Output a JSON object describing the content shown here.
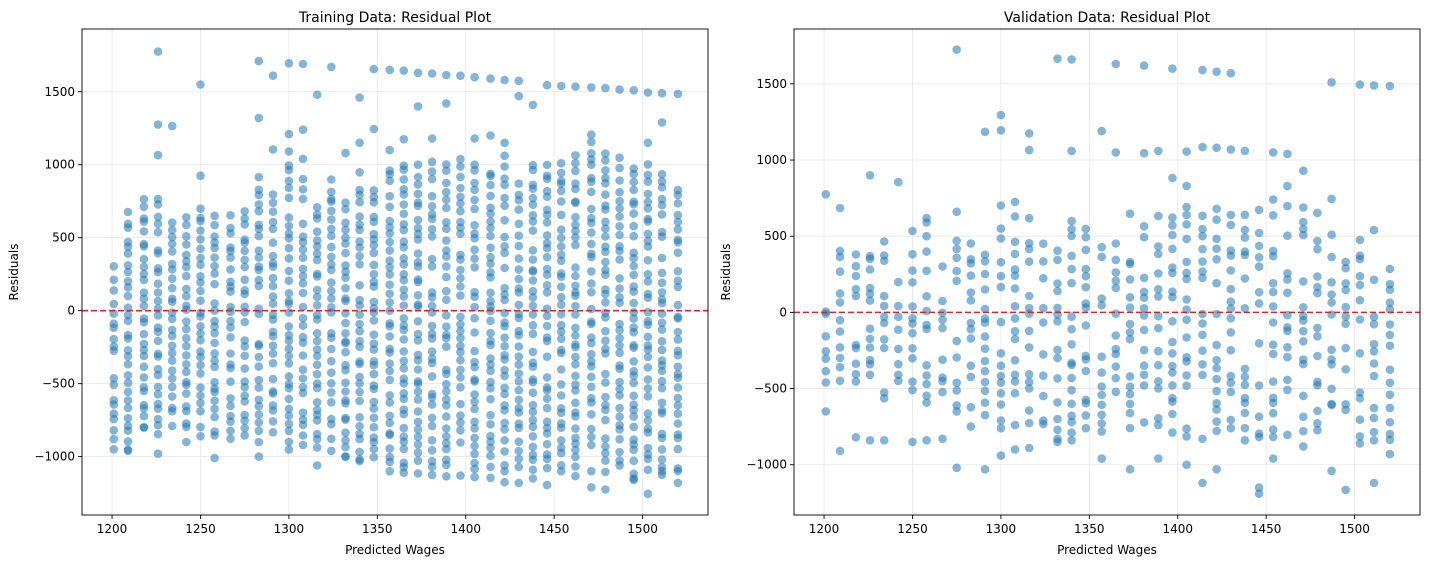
{
  "chart_data": [
    {
      "type": "scatter",
      "title": "Training Data: Residual Plot",
      "xlabel": "Predicted Wages",
      "ylabel": "Residuals",
      "xlim": [
        1183,
        1537
      ],
      "ylim": [
        -1400,
        1930
      ],
      "xticks": [
        1200,
        1250,
        1300,
        1350,
        1400,
        1450,
        1500
      ],
      "yticks": [
        -1000,
        -500,
        0,
        500,
        1000,
        1500
      ],
      "ytick_labels": [
        "−1000",
        "−500",
        "0",
        "500",
        "1000",
        "1500"
      ],
      "grid": true,
      "reference_line": {
        "y": 0,
        "color": "#d62728",
        "style": "dashed"
      },
      "point_color": "#1f77b4",
      "point_alpha": 0.55,
      "point_columns_x": [
        1201,
        1209,
        1218,
        1226,
        1234,
        1242,
        1250,
        1258,
        1267,
        1275,
        1283,
        1291,
        1300,
        1308,
        1316,
        1324,
        1332,
        1340,
        1348,
        1357,
        1365,
        1373,
        1381,
        1389,
        1397,
        1405,
        1414,
        1422,
        1430,
        1438,
        1446,
        1454,
        1462,
        1471,
        1479,
        1487,
        1495,
        1503,
        1511,
        1520
      ],
      "points": [
        [
          1226,
          1775
        ],
        [
          1226,
          1275
        ],
        [
          1226,
          1065
        ],
        [
          1234,
          1265
        ],
        [
          1250,
          1550
        ],
        [
          1250,
          925
        ],
        [
          1283,
          1710
        ],
        [
          1291,
          1610
        ],
        [
          1300,
          1695
        ],
        [
          1308,
          1690
        ],
        [
          1308,
          1240
        ],
        [
          1316,
          1480
        ],
        [
          1324,
          1670
        ],
        [
          1340,
          1460
        ],
        [
          1348,
          1655
        ],
        [
          1348,
          1245
        ],
        [
          1357,
          1650
        ],
        [
          1365,
          1645
        ],
        [
          1365,
          1175
        ],
        [
          1373,
          1630
        ],
        [
          1373,
          1400
        ],
        [
          1381,
          1625
        ],
        [
          1389,
          1615
        ],
        [
          1389,
          1420
        ],
        [
          1397,
          1610
        ],
        [
          1405,
          1600
        ],
        [
          1414,
          1590
        ],
        [
          1422,
          1580
        ],
        [
          1430,
          1575
        ],
        [
          1430,
          1470
        ],
        [
          1438,
          1410
        ],
        [
          1446,
          1545
        ],
        [
          1454,
          1540
        ],
        [
          1462,
          1535
        ],
        [
          1471,
          1530
        ],
        [
          1479,
          1525
        ],
        [
          1487,
          1515
        ],
        [
          1495,
          1510
        ],
        [
          1503,
          1495
        ],
        [
          1511,
          1490
        ],
        [
          1511,
          1290
        ],
        [
          1520,
          1485
        ],
        [
          1283,
          1320
        ],
        [
          1300,
          1210
        ],
        [
          1291,
          1105
        ],
        [
          1332,
          1080
        ],
        [
          1340,
          1150
        ],
        [
          1357,
          1100
        ],
        [
          1381,
          1180
        ],
        [
          1405,
          1180
        ],
        [
          1414,
          1200
        ],
        [
          1422,
          1150
        ],
        [
          1503,
          1150
        ],
        [
          1201,
          -950
        ],
        [
          1209,
          -960
        ],
        [
          1218,
          -800
        ],
        [
          1226,
          -980
        ],
        [
          1242,
          -900
        ],
        [
          1258,
          -1010
        ],
        [
          1283,
          -1000
        ],
        [
          1300,
          -900
        ],
        [
          1316,
          -1060
        ],
        [
          1332,
          -1000
        ],
        [
          1340,
          -1030
        ],
        [
          1357,
          -1100
        ],
        [
          1365,
          -1110
        ],
        [
          1373,
          -1115
        ],
        [
          1381,
          -1125
        ],
        [
          1389,
          -1135
        ],
        [
          1397,
          -1130
        ],
        [
          1405,
          -1140
        ],
        [
          1414,
          -1145
        ],
        [
          1422,
          -1175
        ],
        [
          1430,
          -1180
        ],
        [
          1438,
          -1150
        ],
        [
          1446,
          -1195
        ],
        [
          1454,
          -1100
        ],
        [
          1471,
          -1210
        ],
        [
          1479,
          -1225
        ],
        [
          1495,
          -1160
        ],
        [
          1503,
          -1255
        ],
        [
          1520,
          -1180
        ],
        [
          1511,
          -1100
        ]
      ],
      "band_top": [
        305,
        710,
        790,
        780,
        670,
        640,
        760,
        650,
        655,
        720,
        930,
        820,
        1100,
        1055,
        780,
        920,
        770,
        980,
        850,
        1015,
        1050,
        1000,
        1020,
        1055,
        1050,
        1000,
        1000,
        1080,
        900,
        1000,
        1055,
        1040,
        1080,
        1230,
        1130,
        1080,
        1000,
        1020,
        1000,
        880
      ],
      "band_bottom": [
        -880,
        -960,
        -800,
        -850,
        -830,
        -820,
        -860,
        -870,
        -880,
        -880,
        -900,
        -880,
        -960,
        -920,
        -950,
        -960,
        -1000,
        -1020,
        -1020,
        -1050,
        -1080,
        -1040,
        -1070,
        -1080,
        -1060,
        -1090,
        -1070,
        -1100,
        -1110,
        -1090,
        -1090,
        -1060,
        -1140,
        -1100,
        -1110,
        -1060,
        -1150,
        -1090,
        -1130,
        -1120
      ]
    },
    {
      "type": "scatter",
      "title": "Validation Data: Residual Plot",
      "xlabel": "Predicted Wages",
      "ylabel": "Residuals",
      "xlim": [
        1183,
        1537
      ],
      "ylim": [
        -1330,
        1860
      ],
      "xticks": [
        1200,
        1250,
        1300,
        1350,
        1400,
        1450,
        1500
      ],
      "yticks": [
        -1000,
        -500,
        0,
        500,
        1000,
        1500
      ],
      "ytick_labels": [
        "−1000",
        "−500",
        "0",
        "500",
        "1000",
        "1500"
      ],
      "grid": true,
      "reference_line": {
        "y": 0,
        "color": "#d62728",
        "style": "dashed"
      },
      "point_color": "#1f77b4",
      "point_alpha": 0.55,
      "point_columns_x": [
        1201,
        1209,
        1218,
        1226,
        1234,
        1242,
        1250,
        1258,
        1267,
        1275,
        1283,
        1291,
        1300,
        1308,
        1316,
        1324,
        1332,
        1340,
        1348,
        1357,
        1365,
        1373,
        1381,
        1389,
        1397,
        1405,
        1414,
        1422,
        1430,
        1438,
        1446,
        1454,
        1462,
        1471,
        1479,
        1487,
        1495,
        1503,
        1511,
        1520
      ],
      "points": [
        [
          1201,
          775
        ],
        [
          1209,
          685
        ],
        [
          1226,
          900
        ],
        [
          1242,
          855
        ],
        [
          1275,
          1725
        ],
        [
          1275,
          660
        ],
        [
          1300,
          1295
        ],
        [
          1300,
          1195
        ],
        [
          1291,
          1185
        ],
        [
          1316,
          1175
        ],
        [
          1316,
          1065
        ],
        [
          1332,
          1665
        ],
        [
          1340,
          1660
        ],
        [
          1340,
          1060
        ],
        [
          1357,
          1190
        ],
        [
          1365,
          1630
        ],
        [
          1365,
          1050
        ],
        [
          1381,
          1620
        ],
        [
          1381,
          1045
        ],
        [
          1389,
          1060
        ],
        [
          1397,
          1600
        ],
        [
          1405,
          1055
        ],
        [
          1414,
          1590
        ],
        [
          1414,
          1085
        ],
        [
          1422,
          1580
        ],
        [
          1422,
          1080
        ],
        [
          1430,
          1570
        ],
        [
          1430,
          1070
        ],
        [
          1438,
          1060
        ],
        [
          1454,
          1050
        ],
        [
          1462,
          1040
        ],
        [
          1471,
          930
        ],
        [
          1487,
          745
        ],
        [
          1487,
          1510
        ],
        [
          1503,
          1495
        ],
        [
          1511,
          1490
        ],
        [
          1520,
          1485
        ],
        [
          1511,
          540
        ],
        [
          1201,
          -650
        ],
        [
          1209,
          -910
        ],
        [
          1218,
          -820
        ],
        [
          1226,
          -840
        ],
        [
          1234,
          -840
        ],
        [
          1250,
          -850
        ],
        [
          1258,
          -840
        ],
        [
          1267,
          -830
        ],
        [
          1275,
          -1020
        ],
        [
          1291,
          -1030
        ],
        [
          1300,
          -940
        ],
        [
          1308,
          -900
        ],
        [
          1316,
          -890
        ],
        [
          1332,
          -830
        ],
        [
          1340,
          -840
        ],
        [
          1357,
          -960
        ],
        [
          1373,
          -1030
        ],
        [
          1389,
          -960
        ],
        [
          1405,
          -1000
        ],
        [
          1414,
          -1120
        ],
        [
          1422,
          -1030
        ],
        [
          1438,
          -840
        ],
        [
          1446,
          -1150
        ],
        [
          1446,
          -1190
        ],
        [
          1454,
          -960
        ],
        [
          1471,
          -880
        ],
        [
          1487,
          -1040
        ],
        [
          1495,
          -1165
        ],
        [
          1511,
          -1120
        ],
        [
          1520,
          -930
        ]
      ],
      "band_top": [
        100,
        440,
        380,
        475,
        470,
        400,
        590,
        660,
        340,
        470,
        500,
        450,
        760,
        770,
        640,
        480,
        480,
        660,
        650,
        580,
        530,
        680,
        620,
        710,
        900,
        890,
        680,
        680,
        640,
        640,
        760,
        810,
        890,
        730,
        720,
        520,
        370,
        500,
        280,
        320
      ],
      "band_bottom": [
        -460,
        -570,
        -610,
        -440,
        -590,
        -450,
        -510,
        -620,
        -620,
        -650,
        -750,
        -720,
        -760,
        -740,
        -730,
        -760,
        -850,
        -790,
        -760,
        -810,
        -780,
        -830,
        -820,
        -810,
        -820,
        -840,
        -830,
        -800,
        -760,
        -760,
        -840,
        -830,
        -850,
        -780,
        -790,
        -640,
        -650,
        -860,
        -840,
        -840
      ]
    }
  ]
}
